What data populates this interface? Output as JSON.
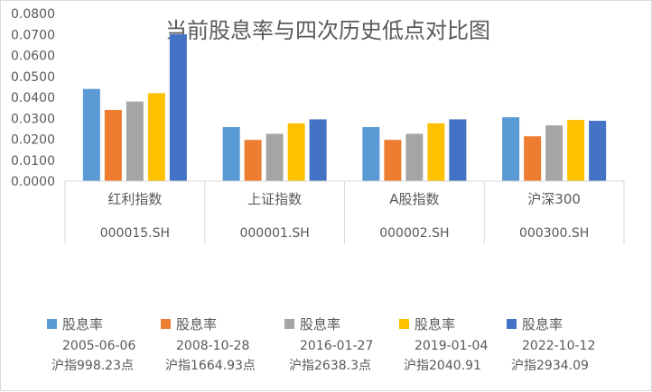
{
  "chart_data": {
    "type": "bar",
    "title": "当前股息率与四次历史低点对比图",
    "ylim": [
      0,
      0.08
    ],
    "yticks": [
      "0.0000",
      "0.0100",
      "0.0200",
      "0.0300",
      "0.0400",
      "0.0500",
      "0.0600",
      "0.0700",
      "0.0800"
    ],
    "grid": false,
    "legend_position": "bottom",
    "categories": [
      {
        "name": "红利指数",
        "code": "000015.SH"
      },
      {
        "name": "上证指数",
        "code": "000001.SH"
      },
      {
        "name": "A股指数",
        "code": "000002.SH"
      },
      {
        "name": "沪深300",
        "code": "000300.SH"
      }
    ],
    "series": [
      {
        "name": "股息率",
        "date": "2005-06-06",
        "index_level": "沪指998.23点",
        "color": "#5b9bd5",
        "values": [
          0.044,
          0.0258,
          0.0258,
          0.0305
        ]
      },
      {
        "name": "股息率",
        "date": "2008-10-28",
        "index_level": "沪指1664.93点",
        "color": "#ed7d31",
        "values": [
          0.034,
          0.0197,
          0.0197,
          0.0214
        ]
      },
      {
        "name": "股息率",
        "date": "2016-01-27",
        "index_level": "沪指2638.3点",
        "color": "#a5a5a5",
        "values": [
          0.038,
          0.0226,
          0.0226,
          0.0266
        ]
      },
      {
        "name": "股息率",
        "date": "2019-01-04",
        "index_level": "沪指2040.91",
        "color": "#ffc000",
        "values": [
          0.042,
          0.0276,
          0.0276,
          0.0292
        ]
      },
      {
        "name": "股息率",
        "date": "2022-10-12",
        "index_level": "沪指2934.09",
        "color": "#4472c4",
        "values": [
          0.0701,
          0.0295,
          0.0295,
          0.0288
        ]
      }
    ]
  }
}
